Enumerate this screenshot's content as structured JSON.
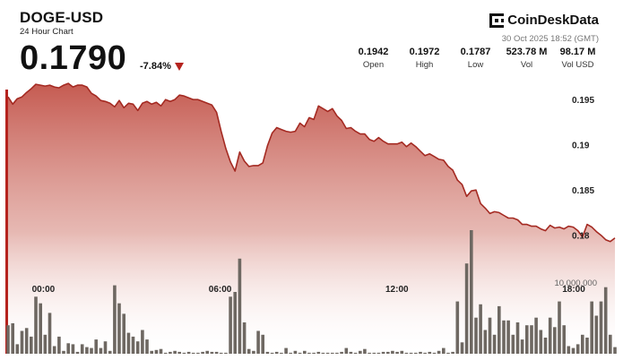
{
  "header": {
    "symbol": "DOGE-USD",
    "subtitle": "24 Hour Chart",
    "price": "0.1790",
    "change": "-7.84%",
    "brand": "CoinDeskData",
    "timestamp": "30 Oct 2025 18:52 (GMT)",
    "stats": [
      {
        "value": "0.1942",
        "label": "Open"
      },
      {
        "value": "0.1972",
        "label": "High"
      },
      {
        "value": "0.1787",
        "label": "Low"
      },
      {
        "value": "523.78 M",
        "label": "Vol"
      },
      {
        "value": "98.17 M",
        "label": "Vol USD"
      }
    ]
  },
  "colors": {
    "accent": "#b5231e",
    "line": "#a42a22",
    "volume": "#6e6862"
  },
  "chart_data": {
    "type": "line",
    "x_unit": "hours",
    "x_start": -1.2,
    "x_end": 19.4,
    "ylim": [
      0.1766,
      0.1975
    ],
    "yticks": [
      0.195,
      0.19,
      0.185,
      0.18
    ],
    "ytick_labels": [
      "0.195",
      "0.19",
      "0.185",
      "0.18"
    ],
    "xticks": [
      0,
      6,
      12,
      18
    ],
    "xtick_labels": [
      "00:00",
      "06:00",
      "12:00",
      "18:00"
    ],
    "volume_label": "10,000,000",
    "price": [
      0.1953,
      0.1945,
      0.1951,
      0.1953,
      0.1958,
      0.1962,
      0.1967,
      0.1966,
      0.1965,
      0.1966,
      0.1964,
      0.1963,
      0.1966,
      0.1968,
      0.1964,
      0.1966,
      0.1966,
      0.1964,
      0.1957,
      0.1954,
      0.1949,
      0.1948,
      0.1946,
      0.1942,
      0.1949,
      0.1941,
      0.1946,
      0.1945,
      0.1938,
      0.1946,
      0.1948,
      0.1945,
      0.1947,
      0.1943,
      0.195,
      0.1948,
      0.195,
      0.1955,
      0.1954,
      0.1952,
      0.195,
      0.195,
      0.1948,
      0.1946,
      0.1944,
      0.1936,
      0.1915,
      0.1896,
      0.1881,
      0.1871,
      0.1892,
      0.1882,
      0.1876,
      0.1877,
      0.1877,
      0.188,
      0.1899,
      0.1913,
      0.1919,
      0.1917,
      0.1915,
      0.1914,
      0.1915,
      0.1924,
      0.192,
      0.193,
      0.1928,
      0.1943,
      0.194,
      0.1937,
      0.194,
      0.1932,
      0.1927,
      0.1918,
      0.1919,
      0.1915,
      0.1912,
      0.1912,
      0.1906,
      0.1904,
      0.1908,
      0.1904,
      0.1901,
      0.1901,
      0.1901,
      0.1903,
      0.1898,
      0.1902,
      0.1898,
      0.1893,
      0.1888,
      0.189,
      0.1887,
      0.1884,
      0.1883,
      0.1876,
      0.1872,
      0.1861,
      0.1856,
      0.1843,
      0.1849,
      0.185,
      0.1835,
      0.183,
      0.1824,
      0.1826,
      0.1825,
      0.1822,
      0.1819,
      0.1819,
      0.1817,
      0.1812,
      0.1812,
      0.181,
      0.181,
      0.1807,
      0.1805,
      0.1811,
      0.1808,
      0.1809,
      0.1807,
      0.181,
      0.1809,
      0.1805,
      0.1798,
      0.1812,
      0.1809,
      0.1804,
      0.18,
      0.1795,
      0.1793,
      0.1797
    ],
    "volume": [
      0.3,
      0.32,
      0.1,
      0.24,
      0.27,
      0.18,
      0.6,
      0.53,
      0.2,
      0.43,
      0.08,
      0.18,
      0.03,
      0.11,
      0.1,
      0.02,
      0.1,
      0.07,
      0.06,
      0.15,
      0.06,
      0.13,
      0.03,
      0.72,
      0.53,
      0.42,
      0.22,
      0.18,
      0.13,
      0.25,
      0.15,
      0.03,
      0.04,
      0.05,
      0.01,
      0.02,
      0.03,
      0.02,
      0.01,
      0.02,
      0.01,
      0.01,
      0.02,
      0.03,
      0.02,
      0.02,
      0.01,
      0.01,
      0.6,
      0.65,
      1.0,
      0.33,
      0.05,
      0.03,
      0.24,
      0.2,
      0.02,
      0.01,
      0.02,
      0.01,
      0.06,
      0.01,
      0.03,
      0.01,
      0.03,
      0.01,
      0.01,
      0.02,
      0.01,
      0.01,
      0.01,
      0.01,
      0.02,
      0.06,
      0.02,
      0.01,
      0.03,
      0.05,
      0.01,
      0.01,
      0.01,
      0.02,
      0.02,
      0.03,
      0.02,
      0.03,
      0.01,
      0.01,
      0.01,
      0.02,
      0.01,
      0.02,
      0.01,
      0.03,
      0.06,
      0.01,
      0.02,
      0.55,
      0.12,
      0.95,
      1.3,
      0.38,
      0.52,
      0.25,
      0.38,
      0.2,
      0.5,
      0.35,
      0.35,
      0.2,
      0.33,
      0.15,
      0.3,
      0.3,
      0.38,
      0.25,
      0.17,
      0.38,
      0.28,
      0.55,
      0.3,
      0.08,
      0.06,
      0.1,
      0.2,
      0.17,
      0.55,
      0.4,
      0.55,
      0.7,
      0.2,
      0.07
    ]
  }
}
